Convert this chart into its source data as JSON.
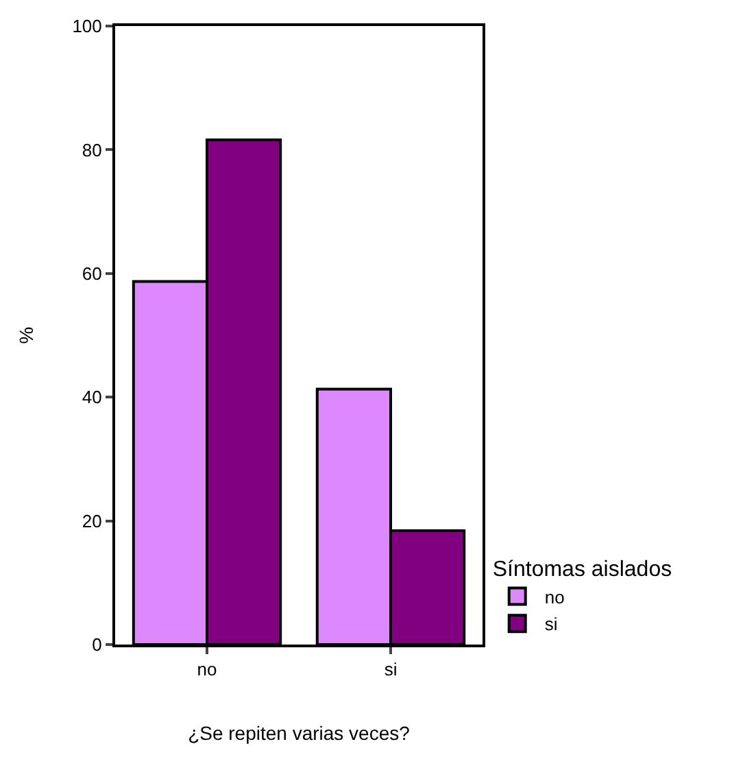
{
  "chart_data": {
    "type": "bar",
    "xlabel": "¿Se repiten varias veces?",
    "ylabel": "%",
    "legend_title": "Síntomas aislados",
    "categories": [
      "no",
      "si"
    ],
    "series": [
      {
        "name": "no",
        "color": "#dd88ff",
        "values": [
          58.7,
          41.3
        ]
      },
      {
        "name": "si",
        "color": "#800080",
        "values": [
          81.6,
          18.4
        ]
      }
    ],
    "ylim": [
      0,
      100
    ],
    "yticks": [
      0,
      20,
      40,
      60,
      80,
      100
    ],
    "legend": "right"
  }
}
